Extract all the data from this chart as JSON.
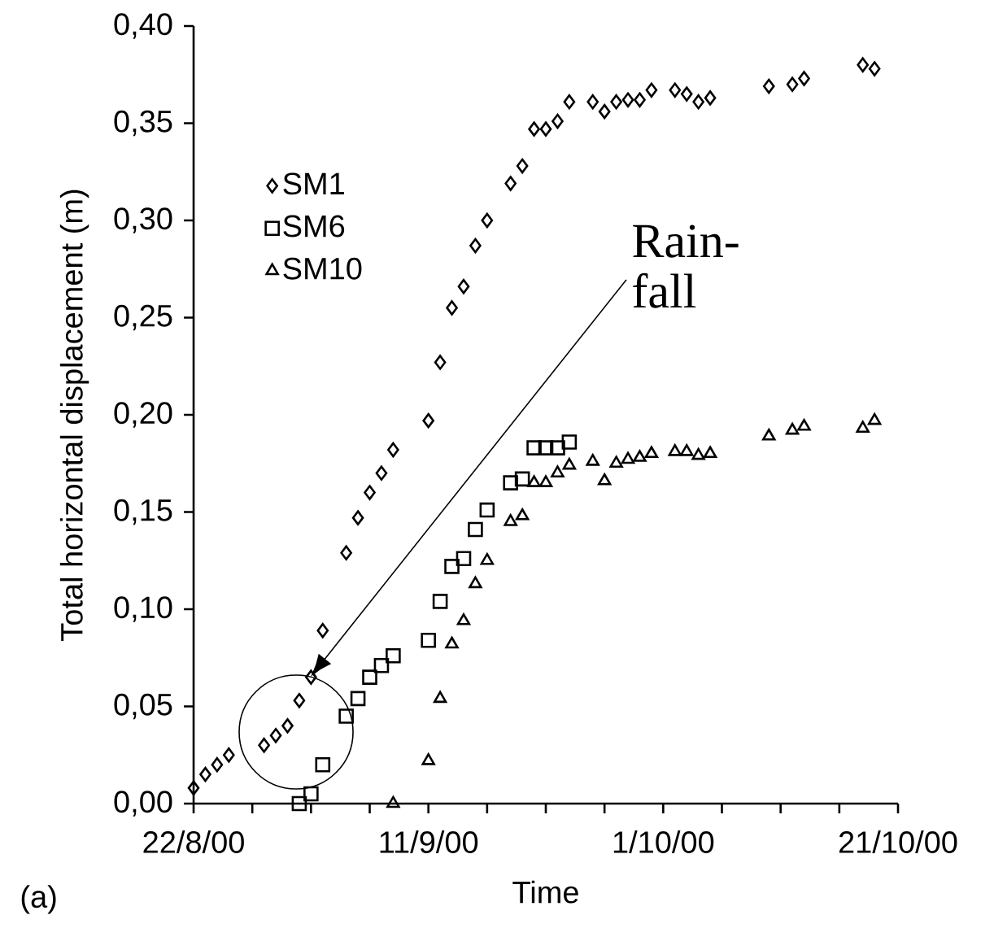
{
  "chart_data": {
    "type": "scatter",
    "xlabel": "Time",
    "ylabel": "Total horizontal displacement (m)",
    "xlim": [
      "2000-08-22",
      "2000-10-21"
    ],
    "xticks": [
      {
        "value": "2000-08-22",
        "label": "22/8/00"
      },
      {
        "value": "2000-09-11",
        "label": "11/9/00"
      },
      {
        "value": "2000-10-01",
        "label": "1/10/00"
      },
      {
        "value": "2000-10-21",
        "label": "21/10/00"
      }
    ],
    "ylim": [
      0,
      0.4
    ],
    "yticks": [
      {
        "value": 0,
        "label": "0,00"
      },
      {
        "value": 0.05,
        "label": "0,05"
      },
      {
        "value": 0.1,
        "label": "0,10"
      },
      {
        "value": 0.15,
        "label": "0,15"
      },
      {
        "value": 0.2,
        "label": "0,20"
      },
      {
        "value": 0.25,
        "label": "0,25"
      },
      {
        "value": 0.3,
        "label": "0,30"
      },
      {
        "value": 0.35,
        "label": "0,35"
      },
      {
        "value": 0.4,
        "label": "0,40"
      }
    ],
    "grid": false,
    "legend": "top left",
    "series": [
      {
        "name": "SM1",
        "color": "#000000",
        "marker": "diamond",
        "x": [
          "2000-08-22",
          "2000-08-23",
          "2000-08-24",
          "2000-08-25",
          "2000-08-28",
          "2000-08-29",
          "2000-08-30",
          "2000-08-31",
          "2000-09-01",
          "2000-09-02",
          "2000-09-04",
          "2000-09-05",
          "2000-09-06",
          "2000-09-07",
          "2000-09-08",
          "2000-09-11",
          "2000-09-12",
          "2000-09-13",
          "2000-09-14",
          "2000-09-15",
          "2000-09-16",
          "2000-09-18",
          "2000-09-19",
          "2000-09-20",
          "2000-09-21",
          "2000-09-22",
          "2000-09-23",
          "2000-09-25",
          "2000-09-26",
          "2000-09-27",
          "2000-09-28",
          "2000-09-29",
          "2000-09-30",
          "2000-10-02",
          "2000-10-03",
          "2000-10-04",
          "2000-10-05",
          "2000-10-10",
          "2000-10-12",
          "2000-10-13",
          "2000-10-18",
          "2000-10-19"
        ],
        "values": [
          0.008,
          0.015,
          0.02,
          0.025,
          0.03,
          0.035,
          0.04,
          0.053,
          0.065,
          0.089,
          0.129,
          0.147,
          0.16,
          0.17,
          0.182,
          0.197,
          0.227,
          0.255,
          0.266,
          0.287,
          0.3,
          0.319,
          0.328,
          0.347,
          0.347,
          0.351,
          0.361,
          0.361,
          0.356,
          0.361,
          0.362,
          0.362,
          0.367,
          0.367,
          0.365,
          0.361,
          0.363,
          0.369,
          0.37,
          0.373,
          0.38,
          0.378
        ]
      },
      {
        "name": "SM6",
        "color": "#000000",
        "marker": "square",
        "x": [
          "2000-08-31",
          "2000-09-01",
          "2000-09-02",
          "2000-09-04",
          "2000-09-05",
          "2000-09-06",
          "2000-09-07",
          "2000-09-08",
          "2000-09-11",
          "2000-09-12",
          "2000-09-13",
          "2000-09-14",
          "2000-09-15",
          "2000-09-16",
          "2000-09-18",
          "2000-09-19",
          "2000-09-20",
          "2000-09-21",
          "2000-09-22",
          "2000-09-23"
        ],
        "values": [
          0,
          0.005,
          0.02,
          0.045,
          0.054,
          0.065,
          0.071,
          0.076,
          0.084,
          0.104,
          0.122,
          0.126,
          0.141,
          0.151,
          0.165,
          0.167,
          0.183,
          0.183,
          0.183,
          0.186
        ]
      },
      {
        "name": "SM10",
        "color": "#000000",
        "marker": "triangle",
        "x": [
          "2000-09-08",
          "2000-09-11",
          "2000-09-12",
          "2000-09-13",
          "2000-09-14",
          "2000-09-15",
          "2000-09-16",
          "2000-09-18",
          "2000-09-19",
          "2000-09-20",
          "2000-09-21",
          "2000-09-22",
          "2000-09-23",
          "2000-09-25",
          "2000-09-26",
          "2000-09-27",
          "2000-09-28",
          "2000-09-29",
          "2000-09-30",
          "2000-10-02",
          "2000-10-03",
          "2000-10-04",
          "2000-10-05",
          "2000-10-10",
          "2000-10-12",
          "2000-10-13",
          "2000-10-18",
          "2000-10-19"
        ],
        "values": [
          0,
          0.022,
          0.054,
          0.082,
          0.094,
          0.113,
          0.125,
          0.145,
          0.148,
          0.165,
          0.165,
          0.17,
          0.174,
          0.176,
          0.166,
          0.175,
          0.177,
          0.178,
          0.18,
          0.181,
          0.181,
          0.179,
          0.18,
          0.189,
          0.192,
          0.194,
          0.193,
          0.197
        ]
      }
    ],
    "annotations": [
      "Rain-fall",
      "(a)"
    ]
  }
}
